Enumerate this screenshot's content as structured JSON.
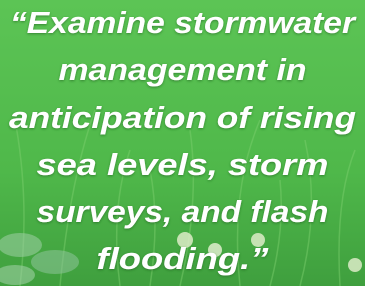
{
  "quote": {
    "lines": [
      "“Examine stormwater",
      "management in",
      "anticipation of rising",
      "sea levels, storm",
      "surveys, and flash",
      "flooding.”"
    ]
  }
}
